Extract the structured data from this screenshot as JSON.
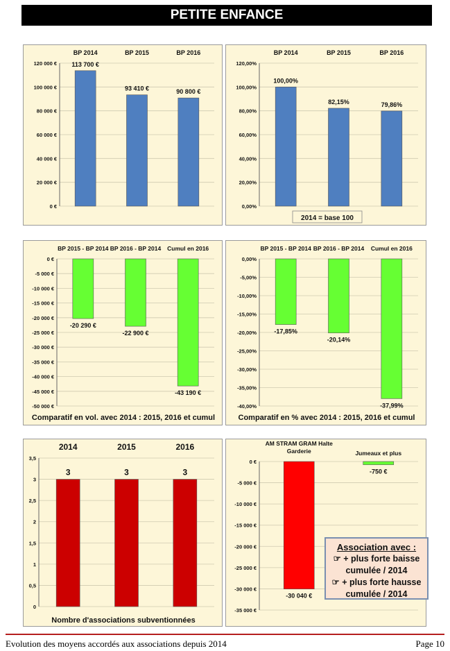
{
  "header": {
    "title": "PETITE ENFANCE"
  },
  "footer": {
    "left": "Evolution des moyens accordés aux associations depuis 2014",
    "right": "Page 10"
  },
  "legend_box": {
    "title": "Association avec :",
    "lines": [
      "☞ + plus forte baisse",
      "cumulée / 2014",
      "☞ + plus forte hausse",
      "cumulée / 2014"
    ]
  },
  "colors": {
    "blue": "#4f7fc0",
    "green": "#66ff33",
    "red": "#cc0000",
    "bright_red": "#ff0000",
    "panel_bg": "#fdf6d8"
  },
  "chart_data": [
    {
      "id": "c1",
      "type": "bar",
      "categories": [
        "BP 2014",
        "BP 2015",
        "BP 2016"
      ],
      "values": [
        113700,
        93410,
        90800
      ],
      "data_labels": [
        "113 700 €",
        "93 410 €",
        "90 800 €"
      ],
      "ylim": [
        0,
        120000
      ],
      "yticks": [
        0,
        20000,
        40000,
        60000,
        80000,
        100000,
        120000
      ],
      "ytick_labels": [
        "0 €",
        "20 000 €",
        "40 000 €",
        "60 000 €",
        "80 000 €",
        "100 000 €",
        "120 000 €"
      ],
      "title": "",
      "caption": "",
      "color": "#4f7fc0"
    },
    {
      "id": "c2",
      "type": "bar",
      "categories": [
        "BP 2014",
        "BP 2015",
        "BP 2016"
      ],
      "values": [
        100.0,
        82.15,
        79.86
      ],
      "data_labels": [
        "100,00%",
        "82,15%",
        "79,86%"
      ],
      "ylim": [
        0,
        120
      ],
      "yticks": [
        0,
        20,
        40,
        60,
        80,
        100,
        120
      ],
      "ytick_labels": [
        "0,00%",
        "20,00%",
        "40,00%",
        "60,00%",
        "80,00%",
        "100,00%",
        "120,00%"
      ],
      "title": "",
      "caption": "2014 = base 100",
      "color": "#4f7fc0"
    },
    {
      "id": "c3",
      "type": "bar",
      "categories": [
        "BP 2015 - BP 2014",
        "BP 2016 - BP 2014",
        "Cumul en 2016"
      ],
      "values": [
        -20290,
        -22900,
        -43190
      ],
      "data_labels": [
        "-20 290 €",
        "-22 900 €",
        "-43 190 €"
      ],
      "ylim": [
        -50000,
        0
      ],
      "yticks": [
        0,
        -5000,
        -10000,
        -15000,
        -20000,
        -25000,
        -30000,
        -35000,
        -40000,
        -45000,
        -50000
      ],
      "ytick_labels": [
        "0 €",
        "-5 000 €",
        "-10 000 €",
        "-15 000 €",
        "-20 000 €",
        "-25 000 €",
        "-30 000 €",
        "-35 000 €",
        "-40 000 €",
        "-45 000 €",
        "-50 000 €"
      ],
      "title": "",
      "caption": "Comparatif en vol. avec 2014 : 2015, 2016 et cumul",
      "color": "#66ff33"
    },
    {
      "id": "c4",
      "type": "bar",
      "categories": [
        "BP 2015 - BP 2014",
        "BP 2016 - BP 2014",
        "Cumul en 2016"
      ],
      "values": [
        -17.85,
        -20.14,
        -37.99
      ],
      "data_labels": [
        "-17,85%",
        "-20,14%",
        "-37,99%"
      ],
      "ylim": [
        -40,
        0
      ],
      "yticks": [
        0,
        -5,
        -10,
        -15,
        -20,
        -25,
        -30,
        -35,
        -40
      ],
      "ytick_labels": [
        "0,00%",
        "-5,00%",
        "-10,00%",
        "-15,00%",
        "-20,00%",
        "-25,00%",
        "-30,00%",
        "-35,00%",
        "-40,00%"
      ],
      "title": "",
      "caption": "Comparatif en % avec 2014 : 2015, 2016 et cumul",
      "color": "#66ff33"
    },
    {
      "id": "c5",
      "type": "bar",
      "categories": [
        "2014",
        "2015",
        "2016"
      ],
      "values": [
        3,
        3,
        3
      ],
      "data_labels": [
        "3",
        "3",
        "3"
      ],
      "ylim": [
        0,
        3.5
      ],
      "yticks": [
        0,
        0.5,
        1,
        1.5,
        2,
        2.5,
        3,
        3.5
      ],
      "ytick_labels": [
        "0",
        "0,5",
        "1",
        "1,5",
        "2",
        "2,5",
        "3",
        "3,5"
      ],
      "title": "",
      "caption": "Nombre d'associations subventionnées",
      "color": "#cc0000"
    },
    {
      "id": "c6",
      "type": "bar",
      "categories": [
        "AM STRAM GRAM Halte Garderie",
        "Jumeaux et plus"
      ],
      "values": [
        -30040,
        -750
      ],
      "data_labels": [
        "-30 040 €",
        "-750 €"
      ],
      "ylim": [
        -35000,
        0
      ],
      "yticks": [
        0,
        -5000,
        -10000,
        -15000,
        -20000,
        -25000,
        -30000,
        -35000
      ],
      "ytick_labels": [
        "0 €",
        "-5 000 €",
        "-10 000 €",
        "-15 000 €",
        "-20 000 €",
        "-25 000 €",
        "-30 000 €",
        "-35 000 €"
      ],
      "title": "",
      "caption": "",
      "colors": [
        "#ff0000",
        "#66ff33"
      ]
    }
  ]
}
